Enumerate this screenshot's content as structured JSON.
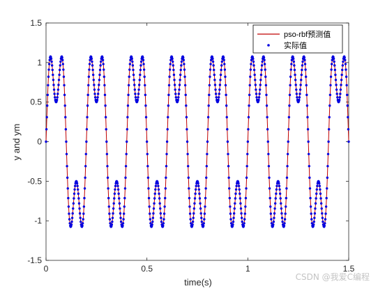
{
  "chart_data": {
    "type": "line",
    "xlabel": "time(s)",
    "ylabel": "y and ym",
    "xlim": [
      0,
      1.5
    ],
    "ylim": [
      -1.5,
      1.5
    ],
    "xticks": [
      "0",
      "0.5",
      "1",
      "1.5"
    ],
    "yticks": [
      "-1.5",
      "-1",
      "-0.5",
      "0",
      "0.5",
      "1",
      "1.5"
    ],
    "grid": false,
    "legend_position": "top-right",
    "signal": {
      "x_start": 0,
      "x_end": 1.5,
      "sample_step": 0.002,
      "formula": "y = sin(10*pi*t) + 0.5*sin(30*pi*t)"
    },
    "series": [
      {
        "name": "pso-rbf预测值",
        "style": "solid-line",
        "color": "#c00000"
      },
      {
        "name": "实际值",
        "style": "dots",
        "color": "#0000e0"
      }
    ]
  },
  "watermark": "CSDN @我爱C编程"
}
